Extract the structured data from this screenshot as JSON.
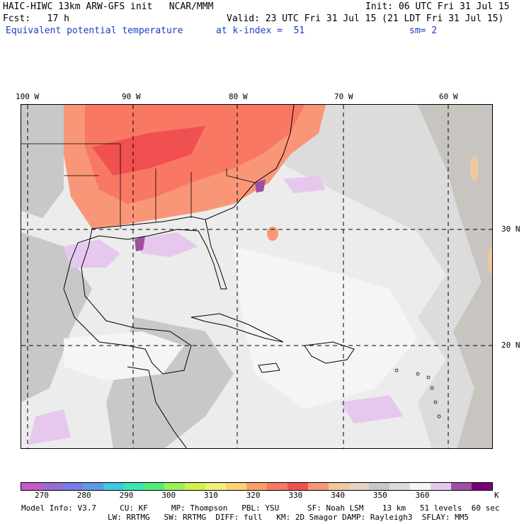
{
  "header": {
    "title": "HAIC-HIWC 13km ARW-GFS init   NCAR/MMM",
    "fcst": "Fcst:   17 h",
    "field": "Equivalent potential temperature",
    "init": "Init: 06 UTC Fri 31 Jul 15",
    "valid": "Valid: 23 UTC Fri 31 Jul 15 (21 LDT Fri 31 Jul 15)",
    "level": "at k-index =  51",
    "smooth": "sm= 2"
  },
  "axes": {
    "longitude_labels": [
      "100 W",
      "90 W",
      "80 W",
      "70 W",
      "60 W"
    ],
    "latitude_labels": [
      "30 N",
      "20 N"
    ]
  },
  "colorbar": {
    "colors": [
      "#c85ac8",
      "#9a6ad2",
      "#7a7ae8",
      "#5a9ae8",
      "#40c8e0",
      "#3ce6b4",
      "#50f078",
      "#9af05a",
      "#d2f050",
      "#f0f078",
      "#fad278",
      "#faa064",
      "#f87864",
      "#f05050",
      "#fa9678",
      "#f0c8a0",
      "#e6d2c8",
      "#c8c8c8",
      "#dcdcdc",
      "#f5f5f5",
      "#e6c8ee",
      "#a050a0",
      "#780078"
    ],
    "tick_labels": [
      "270",
      "280",
      "290",
      "300",
      "310",
      "320",
      "330",
      "340",
      "350",
      "360"
    ],
    "unit": "K"
  },
  "model_info": {
    "line1": "Model Info: V3.7     CU: KF     MP: Thompson   PBL: YSU      SF: Noah LSM    13 km   51 levels  60 sec",
    "line2": "LW: RRTMG   SW: RRTMG  DIFF: full   KM: 2D Smagor DAMP: Rayleigh3  SFLAY: MM5"
  }
}
